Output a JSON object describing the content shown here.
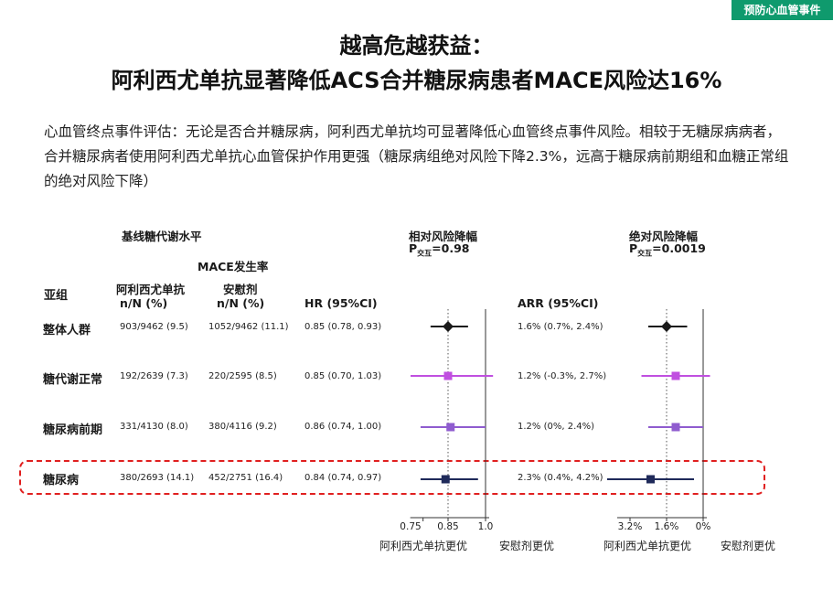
{
  "tag": "预防心血管事件",
  "title_line1": "越高危越获益：",
  "title_line2": "阿利西尤单抗显著降低ACS合并糖尿病患者MACE风险达16%",
  "intro": "心血管终点事件评估：无论是否合并糖尿病，阿利西尤单抗均可显著降低心血管终点事件风险。相较于无糖尿病病者，合并糖尿病者使用阿利西尤单抗心血管保护作用更强（糖尿病组绝对风险下降2.3%，远高于糖尿病前期组和血糖正常组的绝对风险下降）",
  "headers": {
    "baseline": "基线糖代谢水平",
    "mace_rate": "MACE发生率",
    "subgroup": "亚组",
    "drug": "阿利西尤单抗",
    "drug_unit": "n/N (%)",
    "placebo": "安慰剂",
    "placebo_unit": "n/N (%)",
    "hr": "HR (95%CI)",
    "arr": "ARR (95%CI)",
    "rel_title": "相对风险降幅",
    "rel_p_prefix": "P",
    "rel_p_sub": "交互",
    "rel_p_value": "=0.98",
    "abs_title": "绝对风险降幅",
    "abs_p_prefix": "P",
    "abs_p_sub": "交互",
    "abs_p_value": "=0.0019"
  },
  "rows": [
    {
      "label": "整体人群",
      "drug": "903/9462 (9.5)",
      "placebo": "1052/9462 (11.1)",
      "hr_text": "0.85 (0.78, 0.93)",
      "arr_text": "1.6% (0.7%, 2.4%)"
    },
    {
      "label": "糖代谢正常",
      "drug": "192/2639 (7.3)",
      "placebo": "220/2595 (8.5)",
      "hr_text": "0.85 (0.70, 1.03)",
      "arr_text": "1.2% (-0.3%, 2.7%)"
    },
    {
      "label": "糖尿病前期",
      "drug": "331/4130 (8.0)",
      "placebo": "380/4116 (9.2)",
      "hr_text": "0.86 (0.74, 1.00)",
      "arr_text": "1.2% (0%, 2.4%)"
    },
    {
      "label": "糖尿病",
      "drug": "380/2693 (14.1)",
      "placebo": "452/2751 (16.4)",
      "hr_text": "0.84 (0.74, 0.97)",
      "arr_text": "2.3% (0.4%, 4.2%)"
    }
  ],
  "chart_data": [
    {
      "type": "forest",
      "title": "相对风险降幅",
      "subtitle": "P交互=0.98",
      "x_ticks": [
        "0.75",
        "0.85",
        "1.0"
      ],
      "xlim": [
        0.7,
        1.03
      ],
      "reference_line": 1.0,
      "dotted_line": 0.85,
      "favors_left": "阿利西尤单抗更优",
      "favors_right": "安慰剂更优",
      "series": [
        {
          "category": "整体人群",
          "estimate": 0.85,
          "low": 0.78,
          "high": 0.93,
          "marker": "diamond",
          "color": "#1a1a1a"
        },
        {
          "category": "糖代谢正常",
          "estimate": 0.85,
          "low": 0.7,
          "high": 1.03,
          "marker": "square",
          "color": "#c04fe0"
        },
        {
          "category": "糖尿病前期",
          "estimate": 0.86,
          "low": 0.74,
          "high": 1.0,
          "marker": "square",
          "color": "#8f5ccf"
        },
        {
          "category": "糖尿病",
          "estimate": 0.84,
          "low": 0.74,
          "high": 0.97,
          "marker": "square",
          "color": "#1f2a5a"
        }
      ]
    },
    {
      "type": "forest",
      "title": "绝对风险降幅",
      "subtitle": "P交互=0.0019",
      "x_ticks": [
        "3.2%",
        "1.6%",
        "0%"
      ],
      "xlim": [
        4.2,
        -0.2
      ],
      "reference_line": 0,
      "dotted_line": 1.6,
      "favors_left": "阿利西尤单抗更优",
      "favors_right": "安慰剂更优",
      "series": [
        {
          "category": "整体人群",
          "estimate": 1.6,
          "low": 0.7,
          "high": 2.4,
          "marker": "diamond",
          "color": "#1a1a1a"
        },
        {
          "category": "糖代谢正常",
          "estimate": 1.2,
          "low": -0.3,
          "high": 2.7,
          "marker": "square",
          "color": "#c04fe0"
        },
        {
          "category": "糖尿病前期",
          "estimate": 1.2,
          "low": 0.0,
          "high": 2.4,
          "marker": "square",
          "color": "#8f5ccf"
        },
        {
          "category": "糖尿病",
          "estimate": 2.3,
          "low": 0.4,
          "high": 4.2,
          "marker": "square",
          "color": "#1f2a5a"
        }
      ]
    }
  ]
}
